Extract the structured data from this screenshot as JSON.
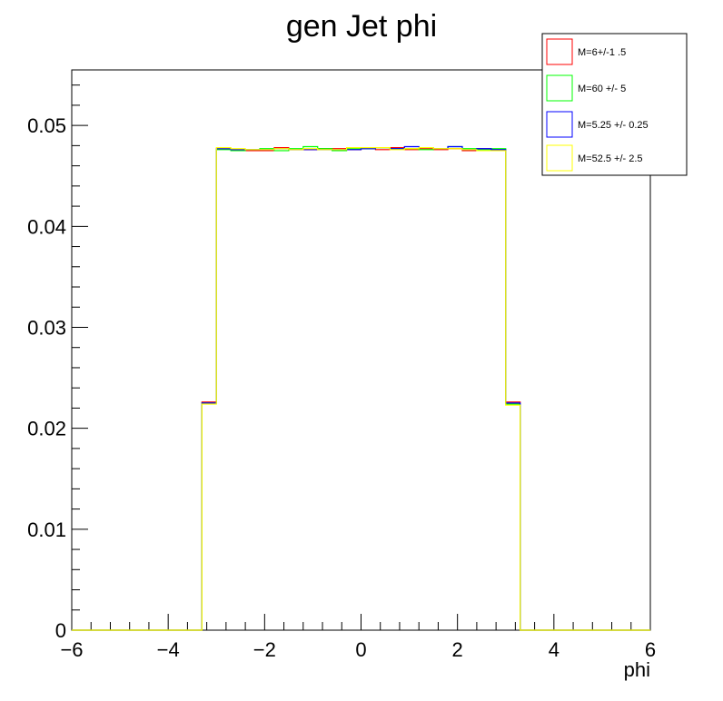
{
  "chart_data": {
    "type": "line",
    "title": "gen Jet phi",
    "xlabel": "phi",
    "ylabel": "",
    "xlim": [
      -6,
      6
    ],
    "ylim": [
      0,
      0.0555
    ],
    "x_ticks": [
      -6,
      -4,
      -2,
      0,
      2,
      4,
      6
    ],
    "x_tick_labels": [
      "−6",
      "−4",
      "−2",
      "0",
      "2",
      "4",
      "6"
    ],
    "y_ticks": [
      0,
      0.01,
      0.02,
      0.03,
      0.04,
      0.05
    ],
    "y_tick_labels": [
      "0",
      "0.01",
      "0.02",
      "0.03",
      "0.04",
      "0.05"
    ],
    "grid": false,
    "legend_position": "top-right",
    "bin_edges": [
      -6,
      -5.7,
      -5.4,
      -5.1,
      -4.8,
      -4.5,
      -4.2,
      -3.9,
      -3.6,
      -3.3,
      -3.0,
      -2.7,
      -2.4,
      -2.1,
      -1.8,
      -1.5,
      -1.2,
      -0.9,
      -0.6,
      -0.3,
      0.0,
      0.3,
      0.6,
      0.9,
      1.2,
      1.5,
      1.8,
      2.1,
      2.4,
      2.7,
      3.0,
      3.3,
      3.6,
      3.9,
      4.2,
      4.5,
      4.8,
      5.1,
      5.4,
      5.7,
      6.0
    ],
    "series": [
      {
        "name": "M=6+/-1 .5",
        "color": "#ff0000",
        "values": [
          0,
          0,
          0,
          0,
          0,
          0,
          0,
          0,
          0,
          0.0226,
          0.0477,
          0.0476,
          0.0475,
          0.0475,
          0.0478,
          0.0476,
          0.0476,
          0.0477,
          0.0477,
          0.0476,
          0.0477,
          0.0476,
          0.0478,
          0.0476,
          0.0477,
          0.0476,
          0.0477,
          0.0475,
          0.0477,
          0.0476,
          0.0226,
          0,
          0,
          0,
          0,
          0,
          0,
          0,
          0,
          0
        ]
      },
      {
        "name": "M=60 +/- 5",
        "color": "#00ff00",
        "values": [
          0,
          0,
          0,
          0,
          0,
          0,
          0,
          0,
          0,
          0.0225,
          0.0476,
          0.0475,
          0.0476,
          0.0477,
          0.0475,
          0.0477,
          0.0479,
          0.0477,
          0.0475,
          0.0477,
          0.0477,
          0.0478,
          0.0477,
          0.0477,
          0.0476,
          0.0477,
          0.0479,
          0.0477,
          0.0476,
          0.0477,
          0.0224,
          0,
          0,
          0,
          0,
          0,
          0,
          0,
          0,
          0
        ]
      },
      {
        "name": "M=5.25 +/- 0.25",
        "color": "#0000ff",
        "values": [
          0,
          0,
          0,
          0,
          0,
          0,
          0,
          0,
          0,
          0.0225,
          0.0477,
          0.0476,
          0.0476,
          0.0476,
          0.0477,
          0.0476,
          0.0476,
          0.0476,
          0.0476,
          0.0476,
          0.0477,
          0.0478,
          0.0477,
          0.0479,
          0.0478,
          0.0477,
          0.0479,
          0.0476,
          0.0477,
          0.0476,
          0.0225,
          0,
          0,
          0,
          0,
          0,
          0,
          0,
          0,
          0
        ]
      },
      {
        "name": "M=52.5 +/- 2.5",
        "color": "#ffff00",
        "values": [
          0,
          0,
          0,
          0,
          0,
          0,
          0,
          0,
          0,
          0.0224,
          0.0478,
          0.0477,
          0.0476,
          0.0476,
          0.0477,
          0.0476,
          0.0477,
          0.0476,
          0.0476,
          0.0478,
          0.0478,
          0.0478,
          0.0476,
          0.0477,
          0.0478,
          0.0477,
          0.0477,
          0.0476,
          0.0475,
          0.0475,
          0.0223,
          0,
          0,
          0,
          0,
          0,
          0,
          0,
          0,
          0
        ]
      }
    ]
  }
}
